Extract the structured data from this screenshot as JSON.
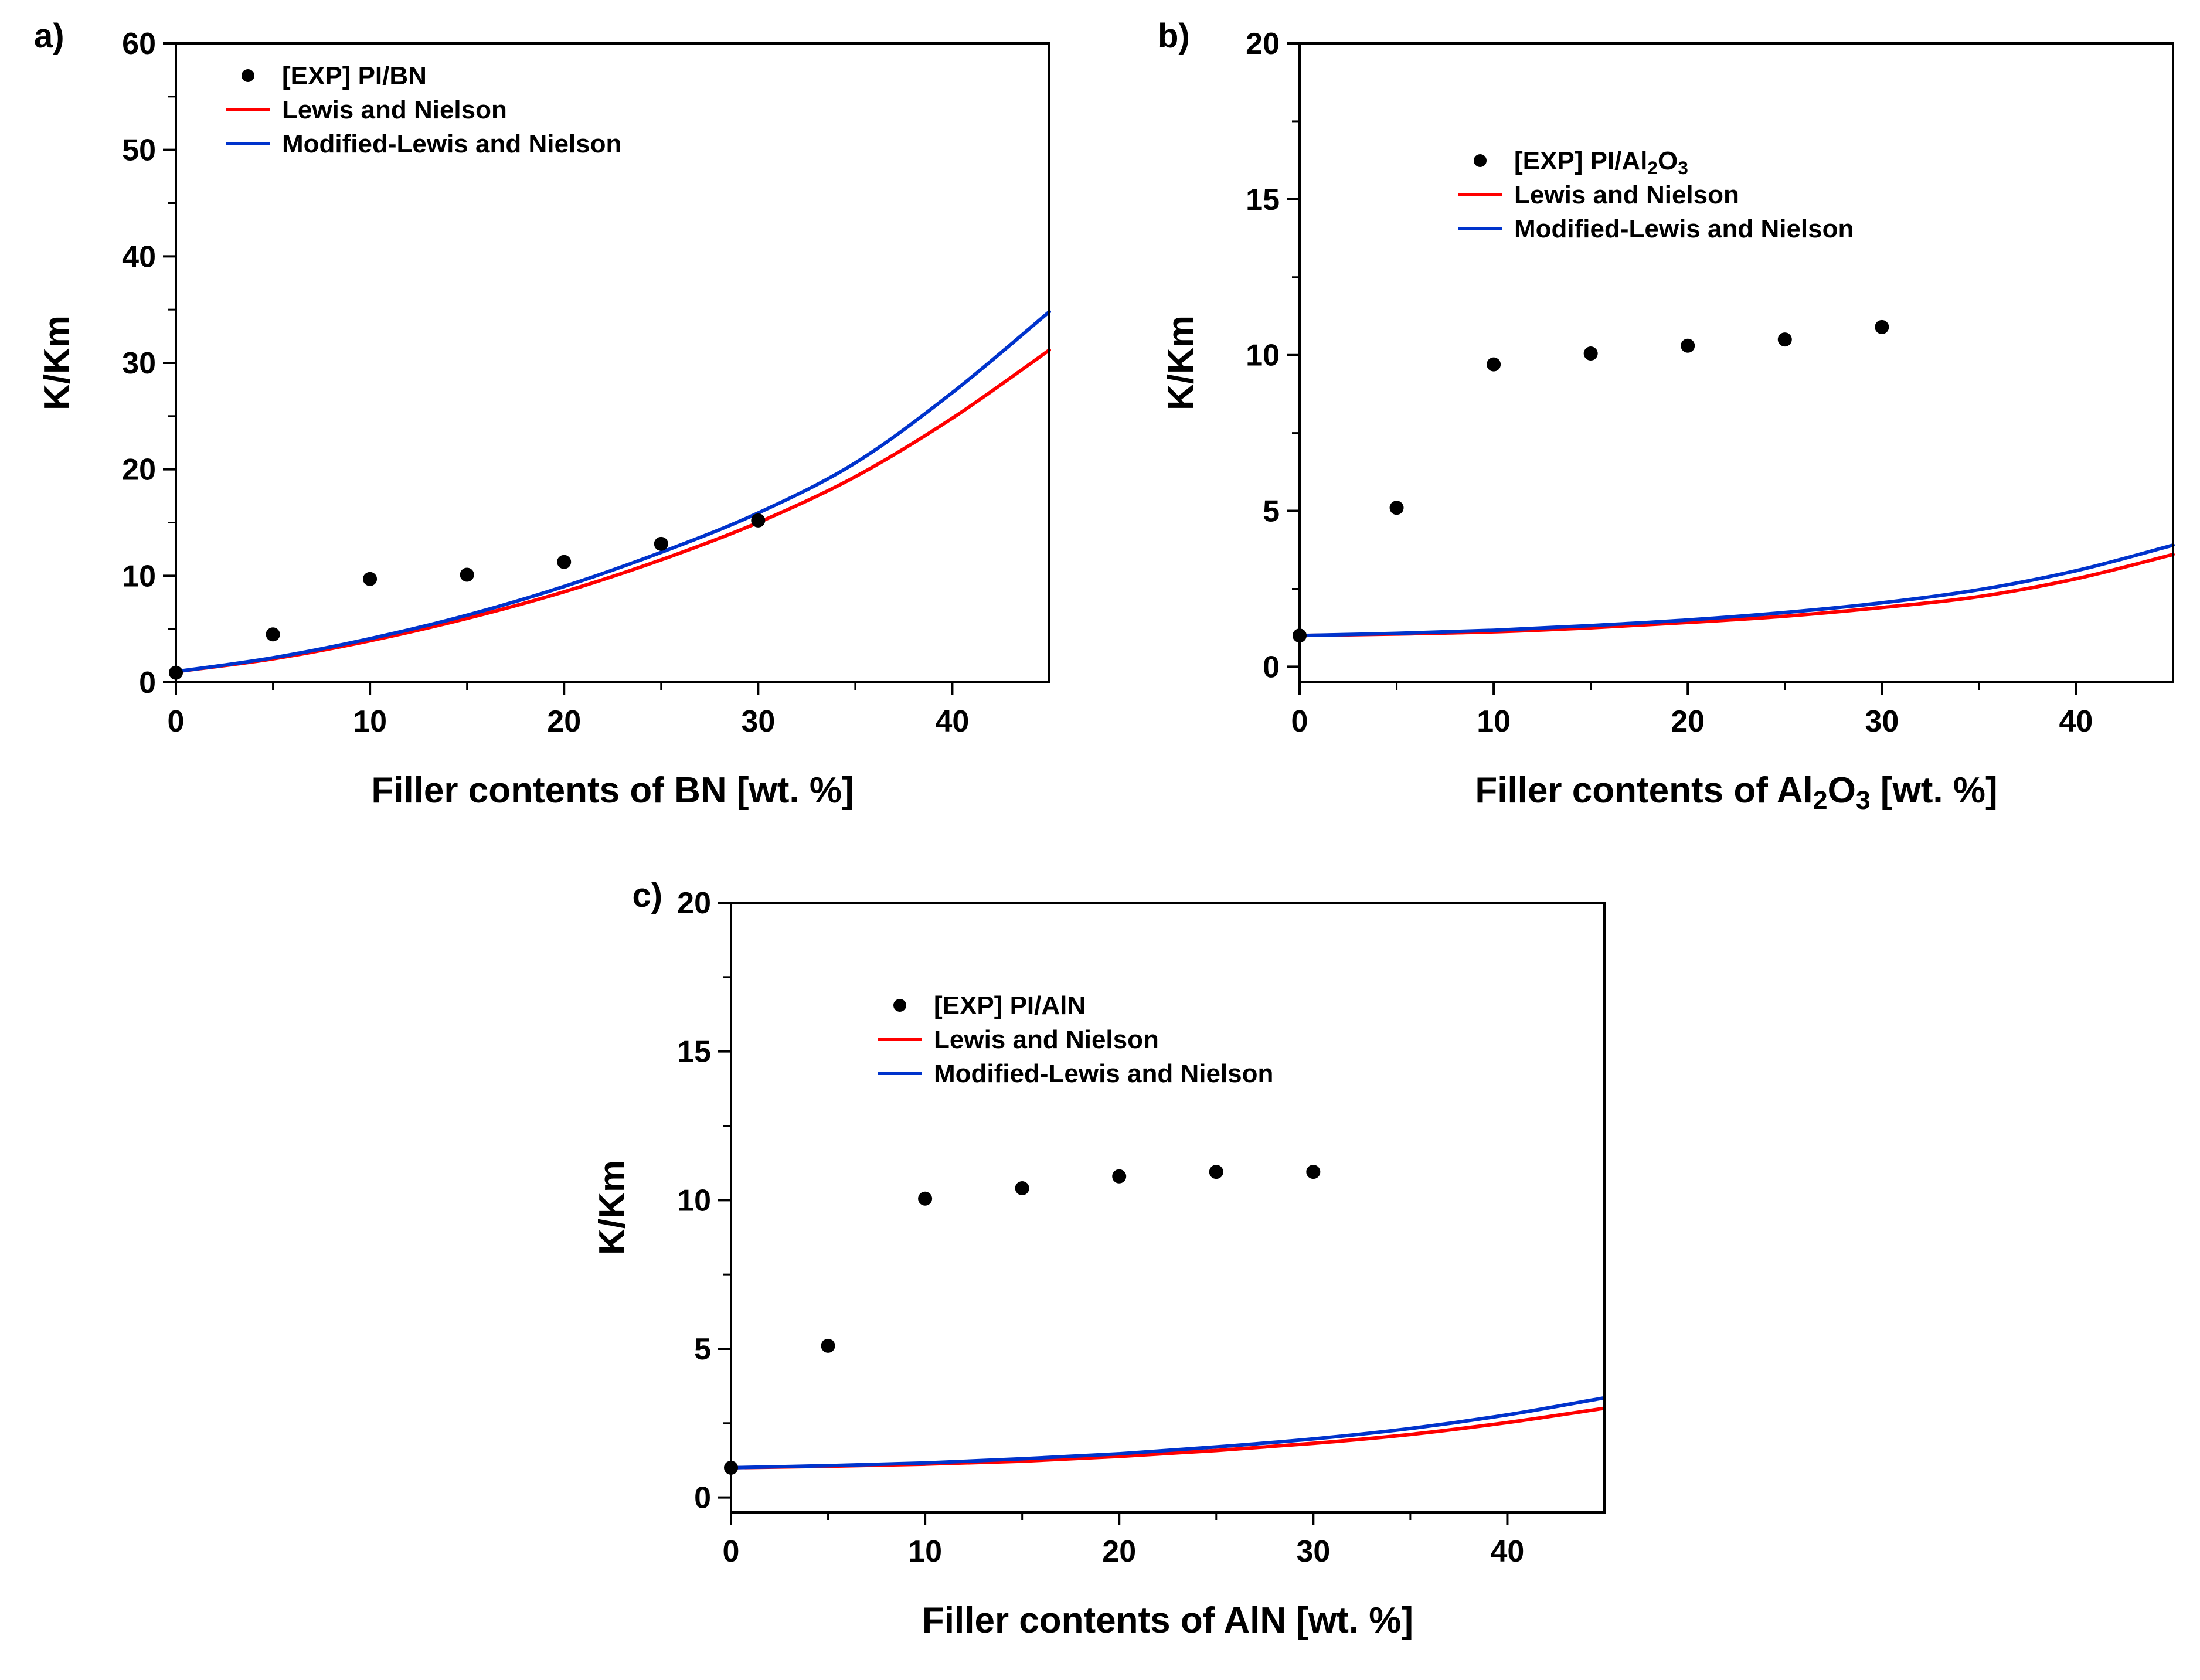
{
  "figure": {
    "background": "#ffffff"
  },
  "colors": {
    "experiment": "#000000",
    "lewis_nielson": "#FF0000",
    "modified_lewis_nielson": "#0033CC"
  },
  "chart_data": [
    {
      "id": "a",
      "panel_label": "a)",
      "type": "scatter",
      "title": "",
      "xlabel": "Filler contents of BN [wt. %]",
      "ylabel": "K/Km",
      "xlim": [
        0,
        45
      ],
      "ylim": [
        0,
        60
      ],
      "xticks": [
        0,
        10,
        20,
        30,
        40
      ],
      "yticks": [
        0,
        10,
        20,
        30,
        40,
        50,
        60
      ],
      "x_minor_step": 5,
      "y_minor_step": 5,
      "grid": false,
      "legend_position": "upper-left",
      "legend_offset": [
        85,
        70
      ],
      "series": [
        {
          "name": "[EXP] PI/BN",
          "type": "scatter",
          "color": "#000000",
          "x": [
            0,
            5,
            10,
            15,
            20,
            25,
            30
          ],
          "y": [
            0.9,
            4.5,
            9.7,
            10.1,
            11.3,
            13.0,
            15.2
          ]
        },
        {
          "name": "Lewis and Nielson",
          "type": "line",
          "color": "#FF0000",
          "x": [
            0,
            5,
            10,
            15,
            20,
            25,
            30,
            35,
            40,
            45
          ],
          "y": [
            1.0,
            2.2,
            3.9,
            6.0,
            8.5,
            11.5,
            15.0,
            19.3,
            24.8,
            31.2
          ]
        },
        {
          "name": "Modified-Lewis and Nielson",
          "type": "line",
          "color": "#0033CC",
          "x": [
            0,
            5,
            10,
            15,
            20,
            25,
            30,
            35,
            40,
            45
          ],
          "y": [
            1.0,
            2.3,
            4.1,
            6.3,
            9.0,
            12.2,
            15.9,
            20.6,
            27.2,
            34.8
          ]
        }
      ]
    },
    {
      "id": "b",
      "panel_label": "b)",
      "type": "scatter",
      "title": "",
      "xlabel": "Filler contents of Al_{2}O_{3} [wt. %]",
      "ylabel": "K/Km",
      "xlim": [
        0,
        45
      ],
      "ylim": [
        -0.5,
        20
      ],
      "xticks": [
        0,
        10,
        20,
        30,
        40
      ],
      "yticks": [
        0,
        5,
        10,
        15,
        20
      ],
      "x_minor_step": 5,
      "y_minor_step": 2.5,
      "grid": false,
      "legend_position": "upper-left",
      "legend_offset": [
        270,
        215
      ],
      "series": [
        {
          "name": "[EXP] PI/Al_{2}O_{3}",
          "type": "scatter",
          "color": "#000000",
          "x": [
            0,
            5,
            10,
            15,
            20,
            25,
            30
          ],
          "y": [
            1.0,
            5.1,
            9.7,
            10.05,
            10.3,
            10.5,
            10.9
          ]
        },
        {
          "name": "Lewis and Nielson",
          "type": "line",
          "color": "#FF0000",
          "x": [
            0,
            5,
            10,
            15,
            20,
            25,
            30,
            35,
            40,
            45
          ],
          "y": [
            1.0,
            1.05,
            1.12,
            1.25,
            1.42,
            1.62,
            1.9,
            2.25,
            2.82,
            3.6
          ]
        },
        {
          "name": "Modified-Lewis and Nielson",
          "type": "line",
          "color": "#0033CC",
          "x": [
            0,
            5,
            10,
            15,
            20,
            25,
            30,
            35,
            40,
            45
          ],
          "y": [
            1.0,
            1.07,
            1.17,
            1.32,
            1.5,
            1.74,
            2.05,
            2.47,
            3.08,
            3.9
          ]
        }
      ]
    },
    {
      "id": "c",
      "panel_label": "c)",
      "type": "scatter",
      "title": "",
      "xlabel": "Filler contents of AlN [wt. %]",
      "ylabel": "K/Km",
      "xlim": [
        0,
        45
      ],
      "ylim": [
        -0.5,
        20
      ],
      "xticks": [
        0,
        10,
        20,
        30,
        40
      ],
      "yticks": [
        0,
        5,
        10,
        15,
        20
      ],
      "x_minor_step": 5,
      "y_minor_step": 2.5,
      "grid": false,
      "legend_position": "upper-left",
      "legend_offset": [
        250,
        190
      ],
      "series": [
        {
          "name": "[EXP] PI/AlN",
          "type": "scatter",
          "color": "#000000",
          "x": [
            0,
            5,
            10,
            15,
            20,
            25,
            30
          ],
          "y": [
            1.0,
            5.1,
            10.05,
            10.4,
            10.8,
            10.95,
            10.95
          ]
        },
        {
          "name": "Lewis and Nielson",
          "type": "line",
          "color": "#FF0000",
          "x": [
            0,
            5,
            10,
            15,
            20,
            25,
            30,
            35,
            40,
            45
          ],
          "y": [
            1.0,
            1.05,
            1.12,
            1.22,
            1.38,
            1.58,
            1.82,
            2.12,
            2.52,
            3.0
          ]
        },
        {
          "name": "Modified-Lewis and Nielson",
          "type": "line",
          "color": "#0033CC",
          "x": [
            0,
            5,
            10,
            15,
            20,
            25,
            30,
            35,
            40,
            45
          ],
          "y": [
            1.0,
            1.07,
            1.16,
            1.3,
            1.47,
            1.7,
            1.97,
            2.32,
            2.78,
            3.35
          ]
        }
      ]
    }
  ]
}
